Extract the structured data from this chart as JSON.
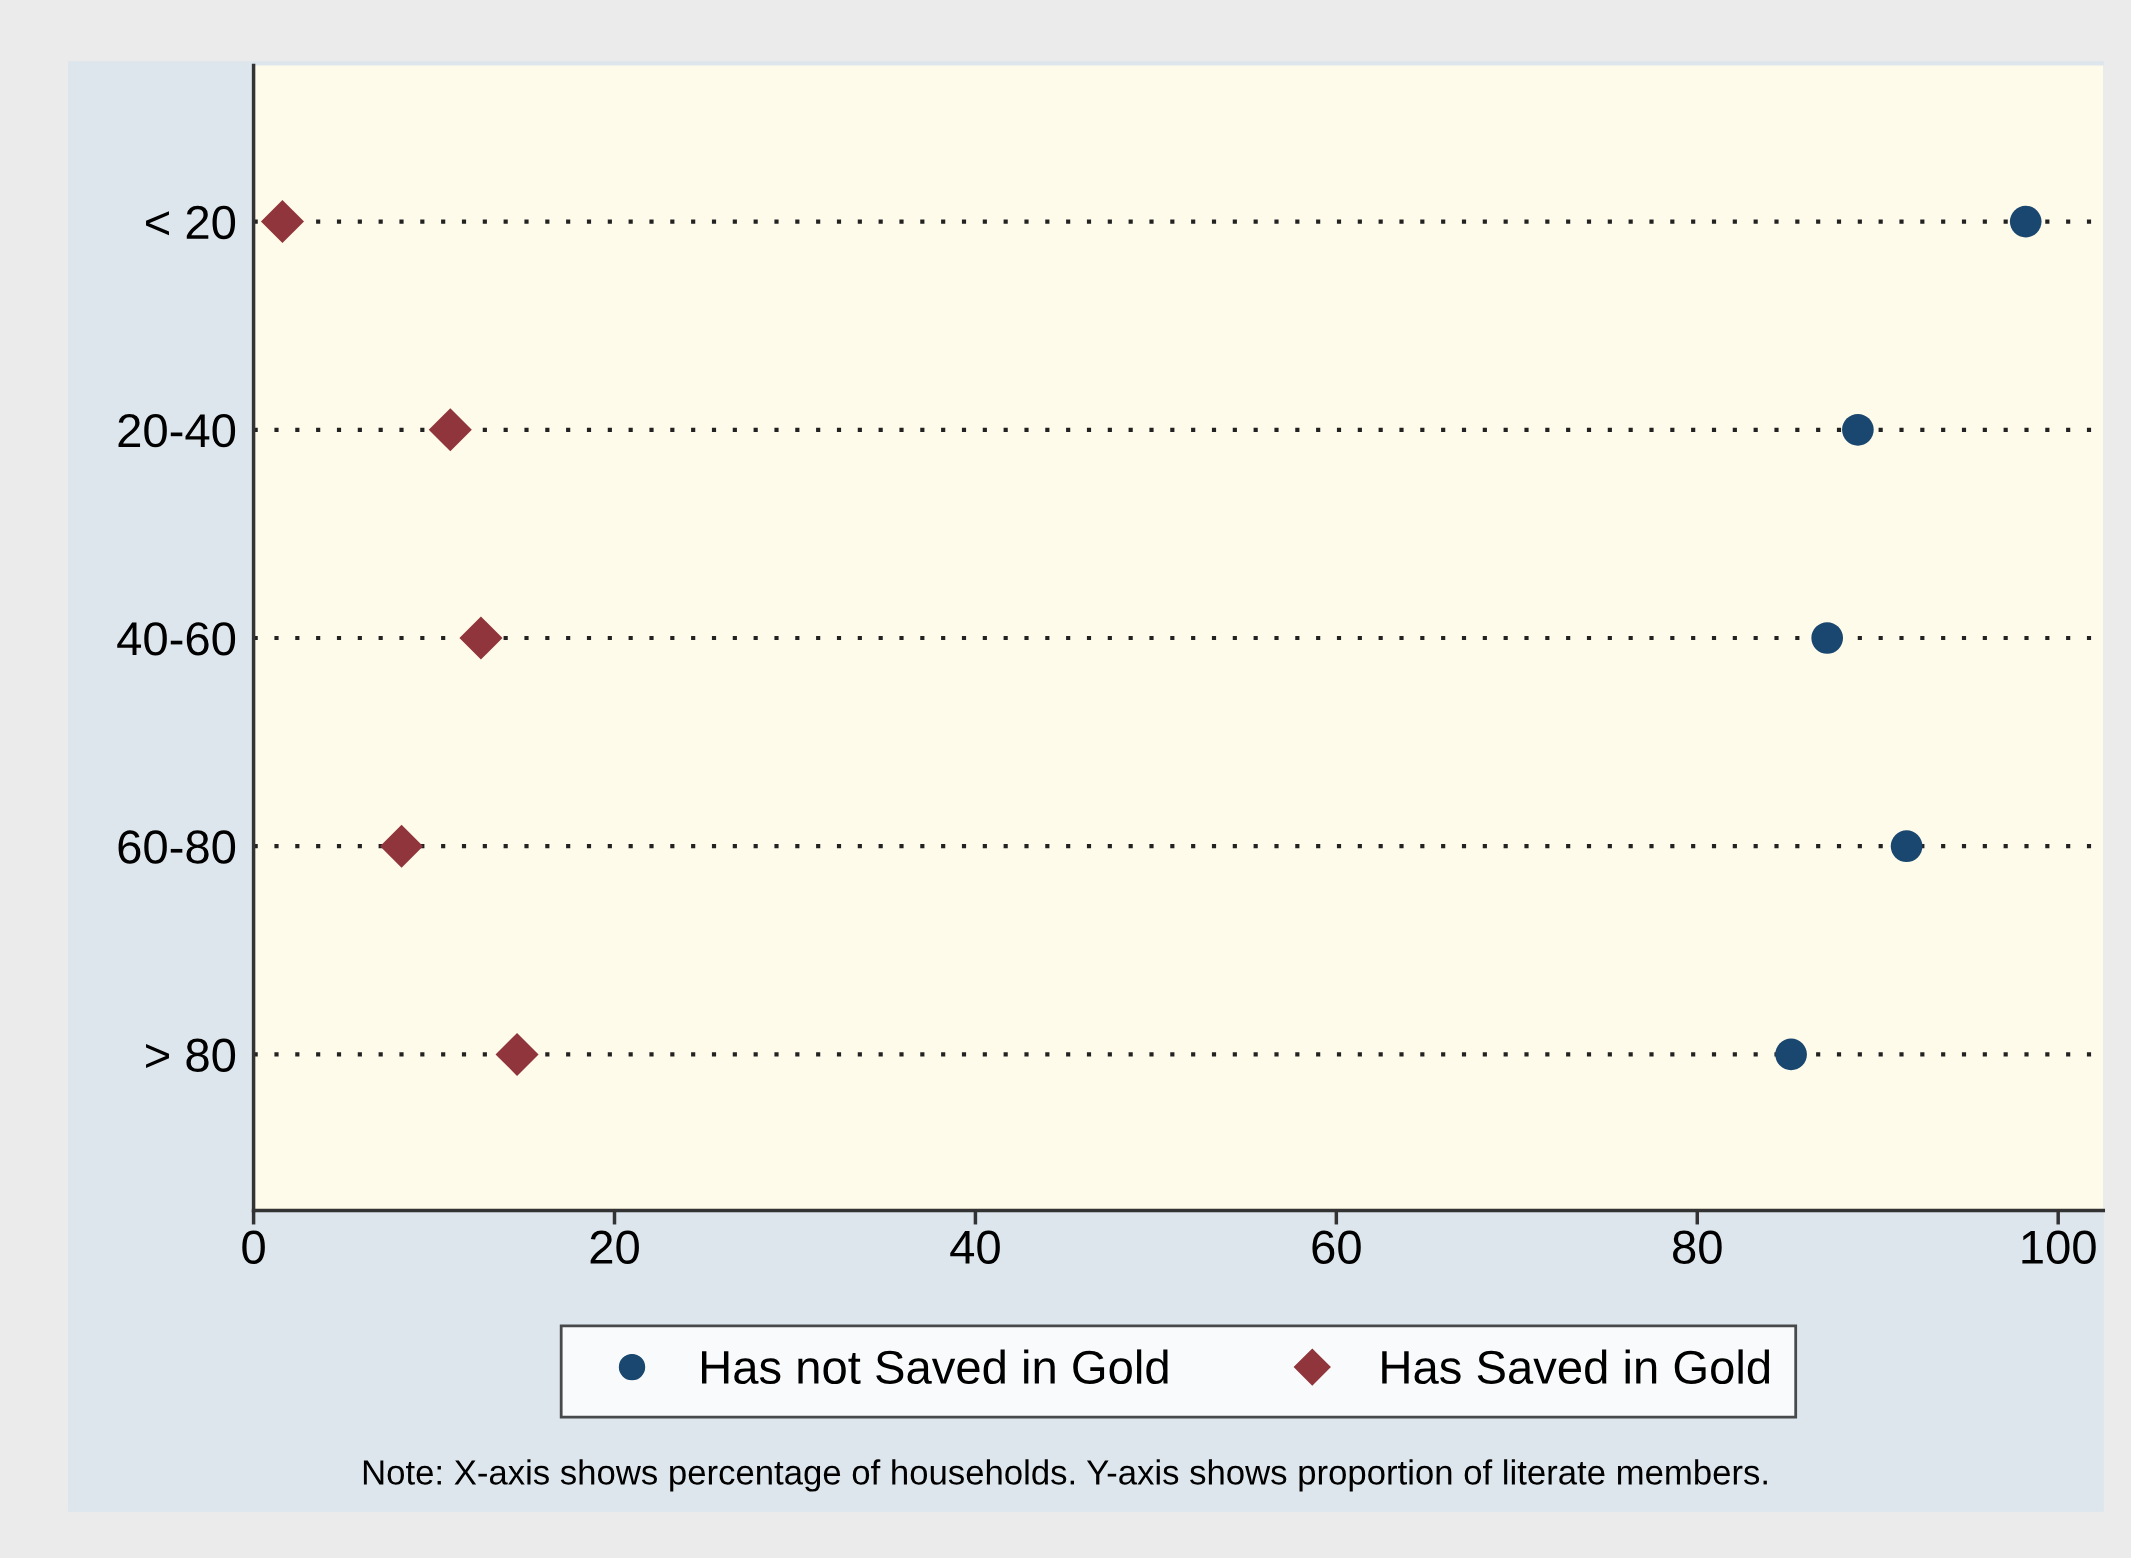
{
  "chart_data": {
    "type": "scatter",
    "orientation": "horizontal",
    "categories": [
      "< 20",
      "20-40",
      "40-60",
      "60-80",
      "> 80"
    ],
    "series": [
      {
        "name": "Has not Saved in Gold",
        "color": "#1a476f",
        "marker": "circle",
        "values": [
          98.2,
          88.9,
          87.2,
          91.6,
          85.2
        ]
      },
      {
        "name": "Has Saved in Gold",
        "color": "#90353b",
        "marker": "diamond",
        "values": [
          1.6,
          10.9,
          12.6,
          8.2,
          14.6
        ]
      }
    ],
    "xlim": [
      0,
      102.5
    ],
    "xticks": [
      0,
      20,
      40,
      60,
      80,
      100
    ],
    "grid": "y",
    "line_style": "dotted",
    "legend": "bottom",
    "annotations": [
      "Note: X-axis shows percentage of households. Y-axis shows proportion of literate members."
    ]
  }
}
